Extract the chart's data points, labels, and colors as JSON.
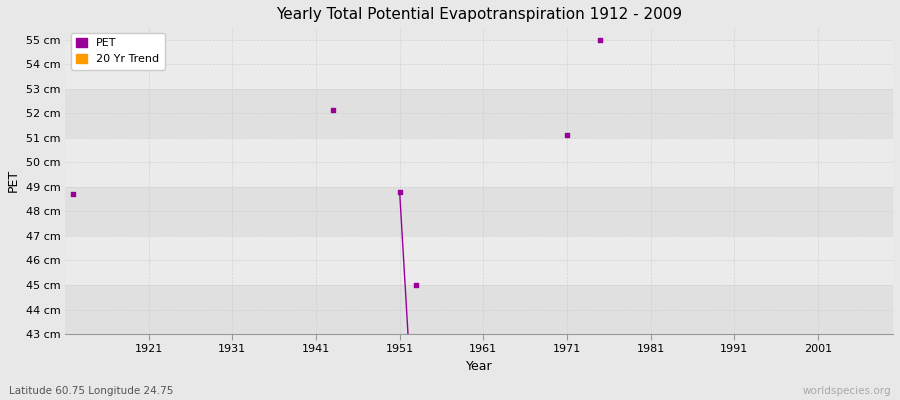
{
  "title": "Yearly Total Potential Evapotranspiration 1912 - 2009",
  "xlabel": "Year",
  "ylabel": "PET",
  "subtitle": "Latitude 60.75 Longitude 24.75",
  "watermark": "worldspecies.org",
  "ylim": [
    43,
    55.5
  ],
  "xlim": [
    1911,
    2010
  ],
  "yticks": [
    43,
    44,
    45,
    46,
    47,
    48,
    49,
    50,
    51,
    52,
    53,
    54,
    55
  ],
  "xticks": [
    1921,
    1931,
    1941,
    1951,
    1961,
    1971,
    1981,
    1991,
    2001
  ],
  "pet_points": [
    [
      1912,
      48.7
    ],
    [
      1943,
      52.15
    ],
    [
      1951,
      48.8
    ],
    [
      1953,
      45.0
    ],
    [
      1971,
      51.1
    ],
    [
      1975,
      55.0
    ]
  ],
  "trend_line": [
    [
      1951,
      48.8
    ],
    [
      1952,
      43.0
    ]
  ],
  "pet_color": "#990099",
  "trend_color": "#FF9900",
  "bg_light": "#ebebeb",
  "bg_dark": "#e0e0e0",
  "grid_color": "#cccccc",
  "axis_bg": "#e8e8e8"
}
